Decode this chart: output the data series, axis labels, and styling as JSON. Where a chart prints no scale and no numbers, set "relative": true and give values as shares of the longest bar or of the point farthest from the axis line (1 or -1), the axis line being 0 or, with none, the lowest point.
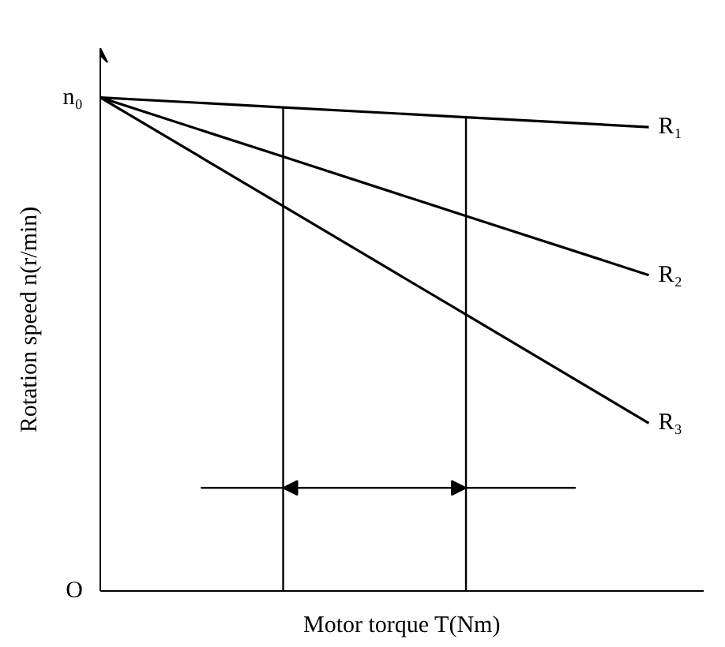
{
  "chart_data": {
    "type": "line",
    "xlabel": "Motor torque T(Nm)",
    "ylabel": "Rotation speed n(r/min)",
    "categories": [
      null,
      null,
      null,
      null
    ],
    "relative": true,
    "annotations": [
      "n₀",
      "O"
    ],
    "series": [
      {
        "name": "R₁",
        "color": "#000000",
        "values": [
          1,
          0.98,
          0.96,
          0.94
        ]
      },
      {
        "name": "R₂",
        "color": "#000000",
        "values": [
          1,
          0.88,
          0.76,
          0.64
        ]
      },
      {
        "name": "R₃",
        "color": "#000000",
        "values": [
          1,
          0.78,
          0.56,
          0.34
        ]
      }
    ],
    "marker": "none",
    "line_style": "solid"
  }
}
